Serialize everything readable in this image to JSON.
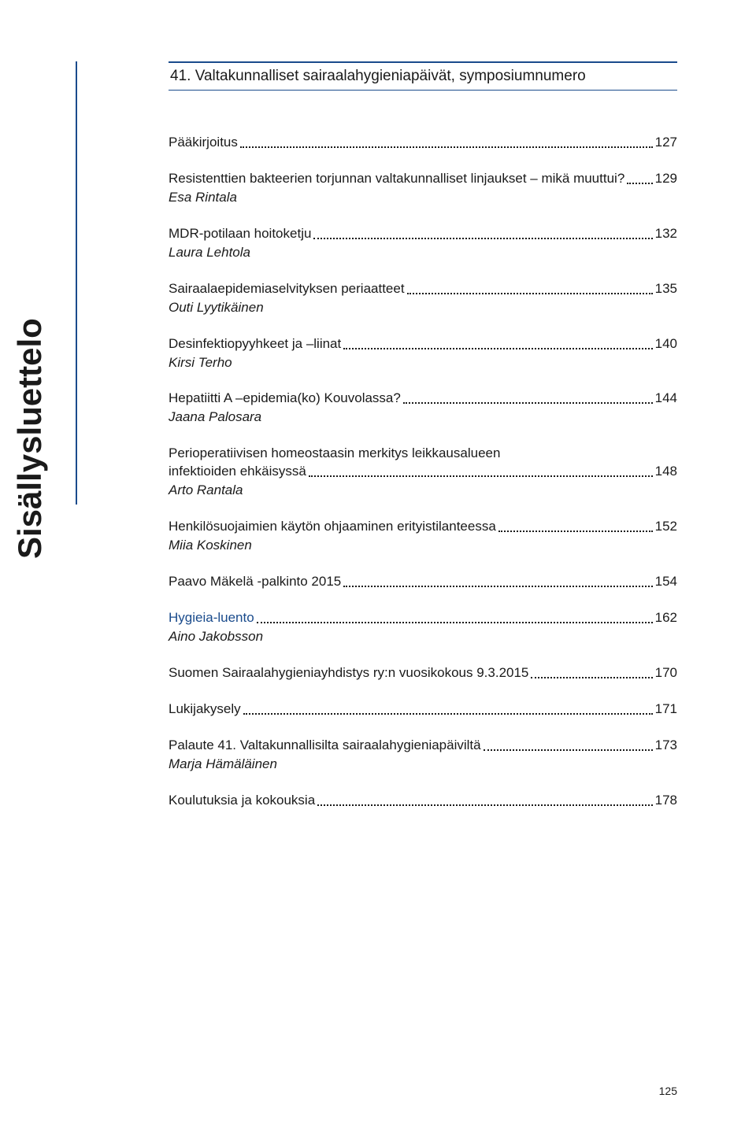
{
  "header": {
    "title": "41. Valtakunnalliset sairaalahygieniapäivät, symposiumnumero"
  },
  "sidebar": {
    "label": "Sisällysluettelo"
  },
  "toc": {
    "entries": [
      {
        "title": "Pääkirjoitus",
        "page": "127",
        "author": null
      },
      {
        "title": "Resistenttien bakteerien torjunnan valtakunnalliset linjaukset – mikä muuttui?",
        "page": "129",
        "author": "Esa Rintala"
      },
      {
        "title": "MDR-potilaan hoitoketju",
        "page": "132",
        "author": "Laura Lehtola"
      },
      {
        "title": "Sairaalaepidemiaselvityksen periaatteet",
        "page": "135",
        "author": "Outi Lyytikäinen"
      },
      {
        "title": "Desinfektiopyyhkeet ja –liinat",
        "page": "140",
        "author": "Kirsi Terho"
      },
      {
        "title": "Hepatiitti A –epidemia(ko) Kouvolassa?",
        "page": "144",
        "author": "Jaana Palosara"
      },
      {
        "title_line1": "Perioperatiivisen homeostaasin merkitys leikkausalueen",
        "title_line2": "infektioiden ehkäisyssä",
        "page": "148",
        "author": "Arto Rantala"
      },
      {
        "title": "Henkilösuojaimien käytön ohjaaminen erityistilanteessa",
        "page": "152",
        "author": "Miia Koskinen"
      },
      {
        "title": "Paavo Mäkelä -palkinto 2015",
        "page": "154",
        "author": null
      },
      {
        "title": "Hygieia-luento",
        "page": "162",
        "author": "Aino Jakobsson",
        "blue": true
      },
      {
        "title": "Suomen Sairaalahygieniayhdistys ry:n vuosikokous 9.3.2015",
        "page": "170",
        "author": null
      },
      {
        "title": "Lukijakysely",
        "page": "171",
        "author": null
      },
      {
        "title": "Palaute 41. Valtakunnallisilta sairaalahygieniapäiviltä",
        "page": "173",
        "author": "Marja Hämäläinen"
      },
      {
        "title": "Koulutuksia ja kokouksia",
        "page": "178",
        "author": null
      }
    ]
  },
  "pageNumber": "125"
}
